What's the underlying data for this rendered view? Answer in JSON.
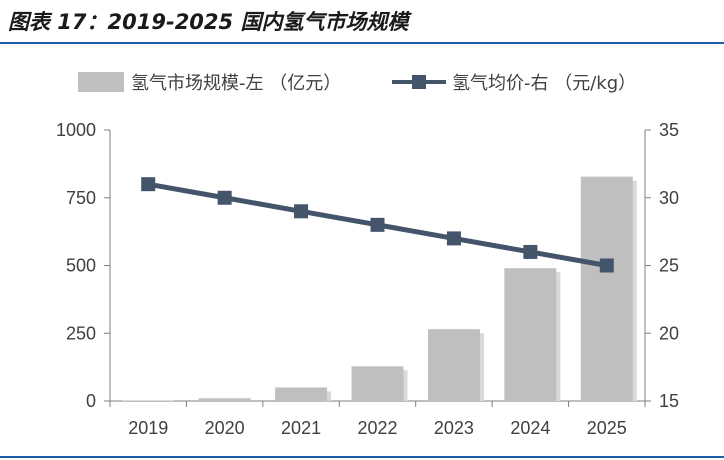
{
  "header": {
    "title": "图表 17：2019-2025 国内氢气市场规模"
  },
  "chart_data": {
    "type": "bar",
    "categories": [
      "2019",
      "2020",
      "2021",
      "2022",
      "2023",
      "2024",
      "2025"
    ],
    "series": [
      {
        "name": "氢气市场规模-左 （亿元）",
        "type": "bar",
        "axis": "left",
        "color": "#bfbfbf",
        "values": [
          2,
          10,
          50,
          128,
          265,
          490,
          828
        ]
      },
      {
        "name": "氢气均价-右 （元/kg）",
        "type": "line",
        "axis": "right",
        "color": "#44546a",
        "values": [
          31,
          30,
          29,
          28,
          27,
          26,
          25
        ]
      }
    ],
    "left_axis": {
      "ylim": [
        0,
        1000
      ],
      "ticks": [
        "0",
        "250",
        "500",
        "750",
        "1000"
      ]
    },
    "right_axis": {
      "ylim": [
        15,
        35
      ],
      "ticks": [
        "15",
        "20",
        "25",
        "30",
        "35"
      ]
    },
    "legend": "top"
  }
}
